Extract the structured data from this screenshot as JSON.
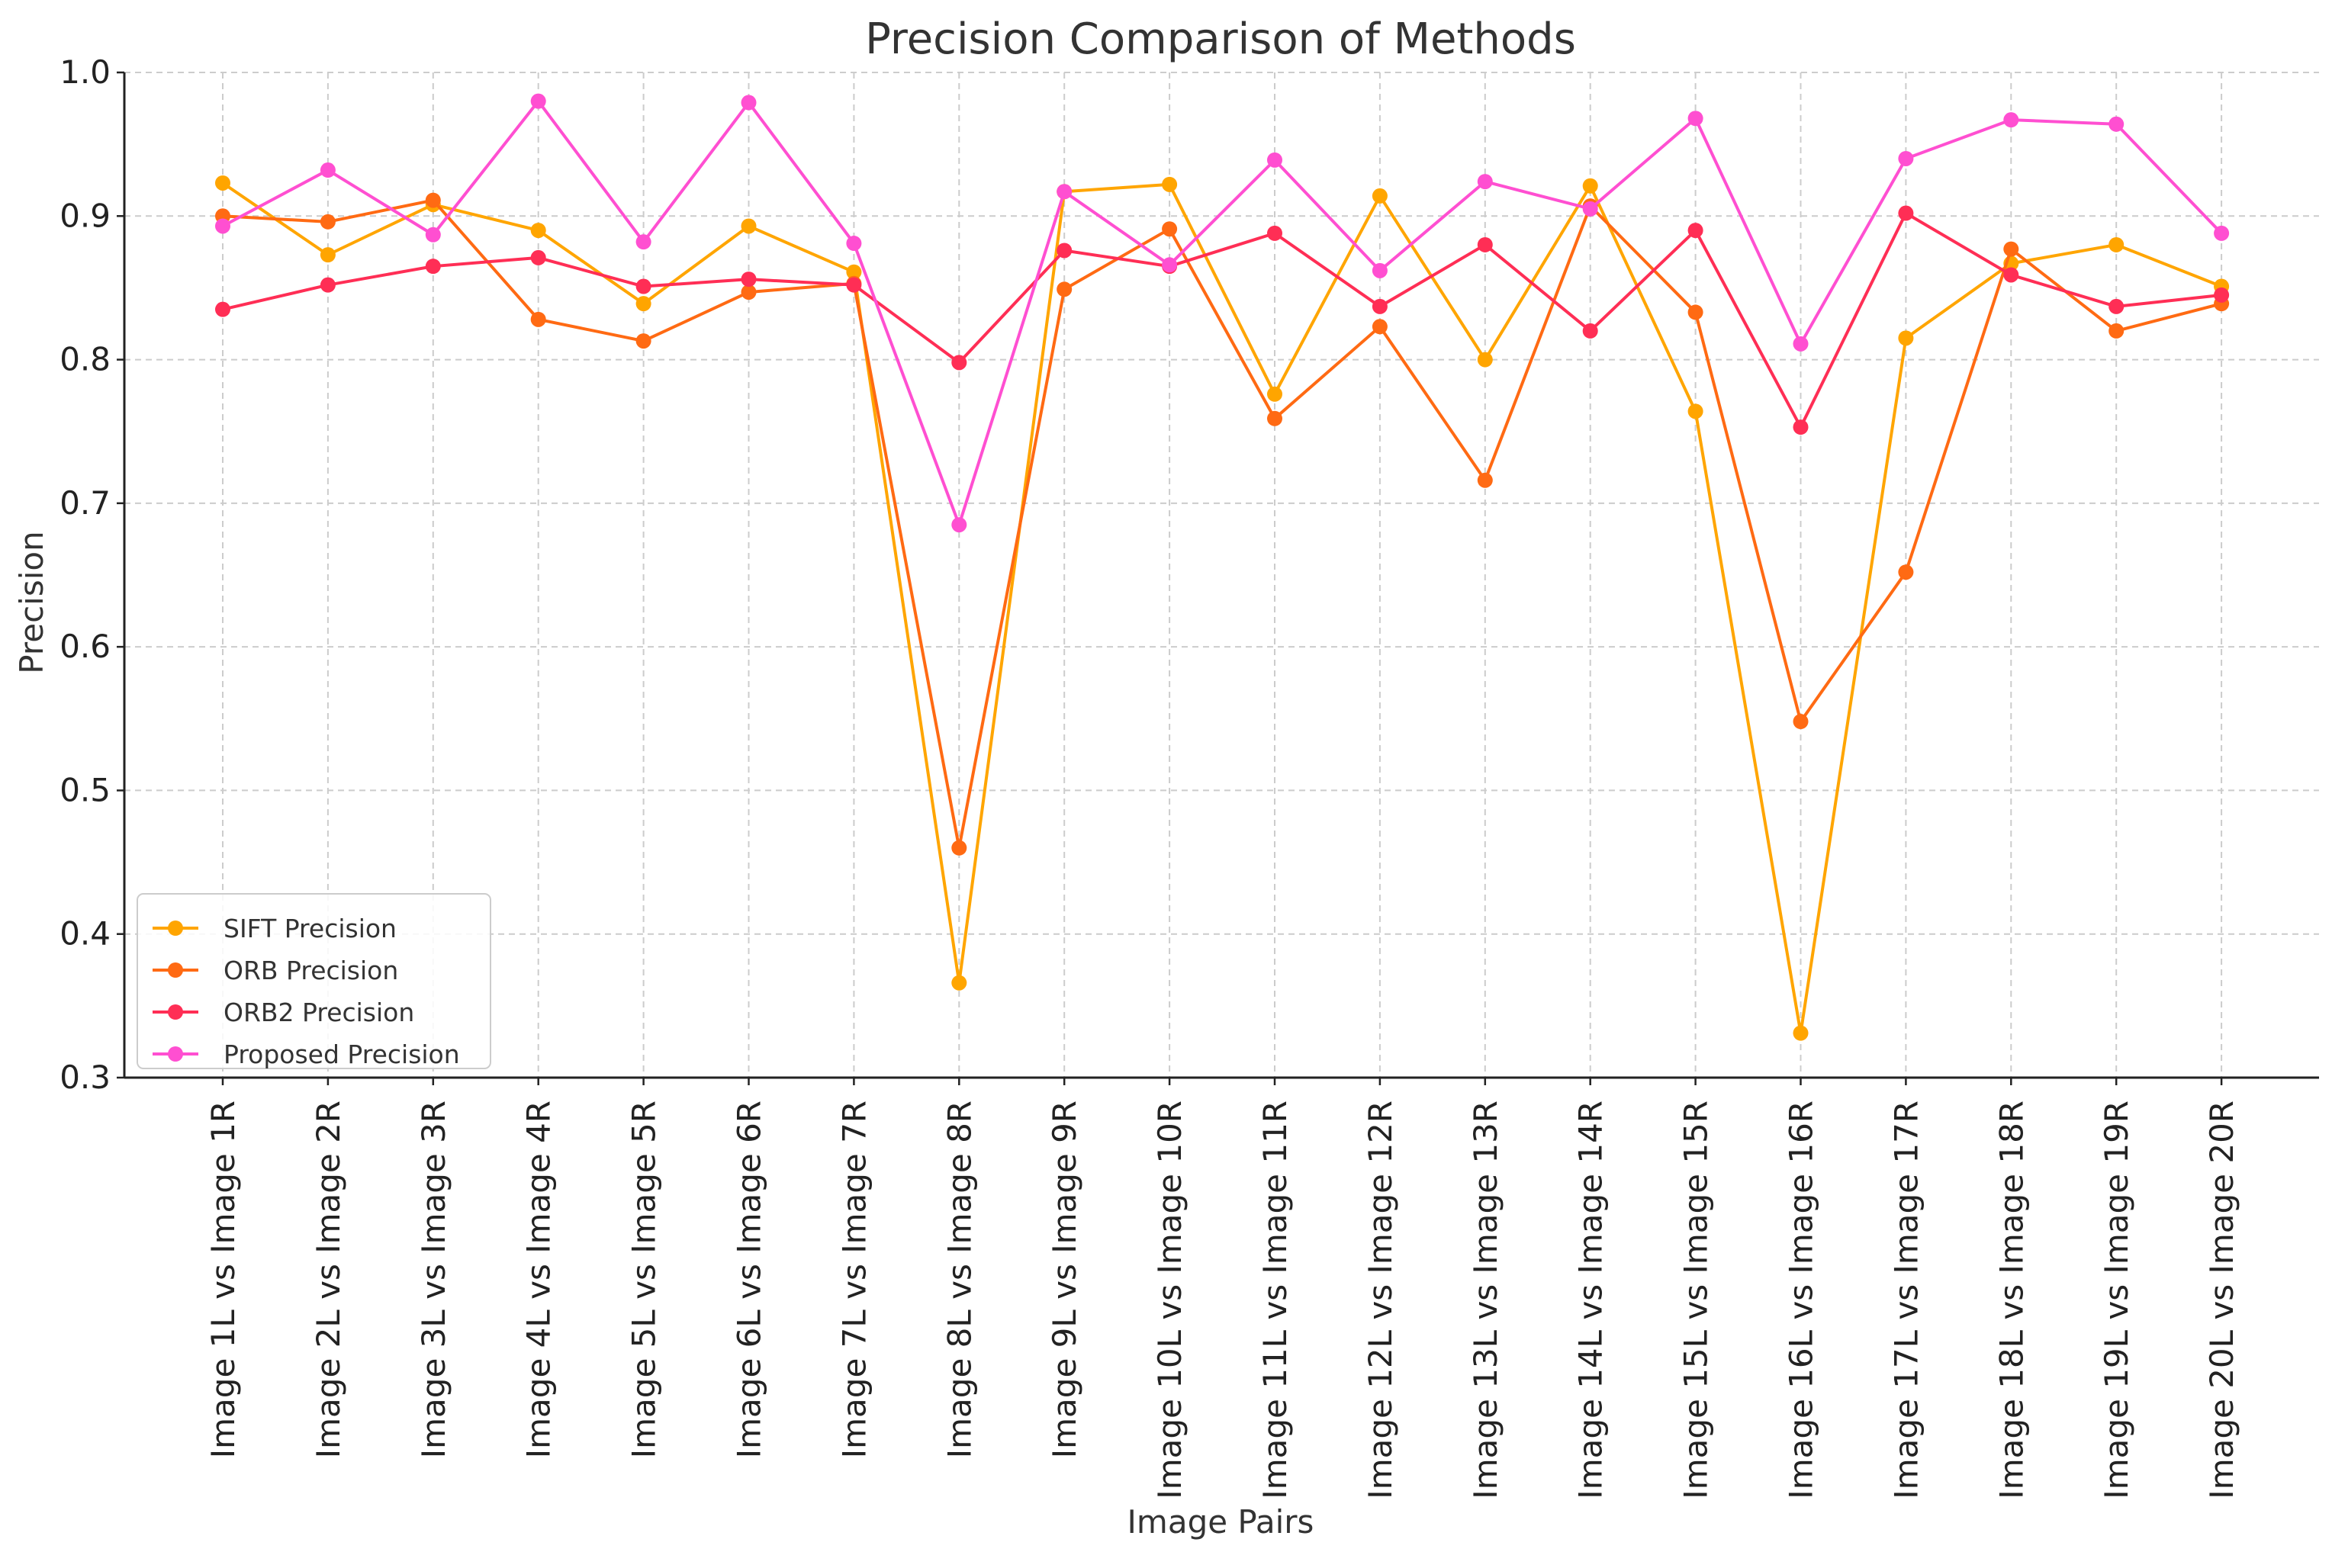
{
  "chart_data": {
    "type": "line",
    "title": "Precision Comparison of Methods",
    "xlabel": "Image Pairs",
    "ylabel": "Precision",
    "ylim": [
      0.3,
      1.0
    ],
    "yticks": [
      "0.3",
      "0.4",
      "0.5",
      "0.6",
      "0.7",
      "0.8",
      "0.9",
      "1.0"
    ],
    "grid": true,
    "legend_position": "lower-left",
    "categories": [
      "Image 1L vs Image 1R",
      "Image 2L vs Image 2R",
      "Image 3L vs Image 3R",
      "Image 4L vs Image 4R",
      "Image 5L vs Image 5R",
      "Image 6L vs Image 6R",
      "Image 7L vs Image 7R",
      "Image 8L vs Image 8R",
      "Image 9L vs Image 9R",
      "Image 10L vs Image 10R",
      "Image 11L vs Image 11R",
      "Image 12L vs Image 12R",
      "Image 13L vs Image 13R",
      "Image 14L vs Image 14R",
      "Image 15L vs Image 15R",
      "Image 16L vs Image 16R",
      "Image 17L vs Image 17R",
      "Image 18L vs Image 18R",
      "Image 19L vs Image 19R",
      "Image 20L vs Image 20R"
    ],
    "series": [
      {
        "name": "SIFT Precision",
        "color": "#FFA500",
        "values": [
          0.923,
          0.873,
          0.908,
          0.89,
          0.839,
          0.893,
          0.861,
          0.366,
          0.917,
          0.922,
          0.776,
          0.914,
          0.8,
          0.921,
          0.764,
          0.331,
          0.815,
          0.867,
          0.88,
          0.851
        ]
      },
      {
        "name": "ORB Precision",
        "color": "#FF6A13",
        "values": [
          0.9,
          0.896,
          0.911,
          0.828,
          0.813,
          0.847,
          0.853,
          0.46,
          0.849,
          0.891,
          0.759,
          0.823,
          0.716,
          0.907,
          0.833,
          0.548,
          0.652,
          0.877,
          0.82,
          0.839
        ]
      },
      {
        "name": "ORB2 Precision",
        "color": "#FF2E55",
        "values": [
          0.835,
          0.852,
          0.865,
          0.871,
          0.851,
          0.856,
          0.852,
          0.798,
          0.876,
          0.865,
          0.888,
          0.837,
          0.88,
          0.82,
          0.89,
          0.753,
          0.902,
          0.859,
          0.837,
          0.845
        ]
      },
      {
        "name": "Proposed Precision",
        "color": "#FF4FD1",
        "values": [
          0.893,
          0.932,
          0.887,
          0.98,
          0.882,
          0.979,
          0.881,
          0.685,
          0.917,
          0.866,
          0.939,
          0.862,
          0.924,
          0.905,
          0.968,
          0.811,
          0.94,
          0.967,
          0.964,
          0.888
        ]
      }
    ]
  }
}
